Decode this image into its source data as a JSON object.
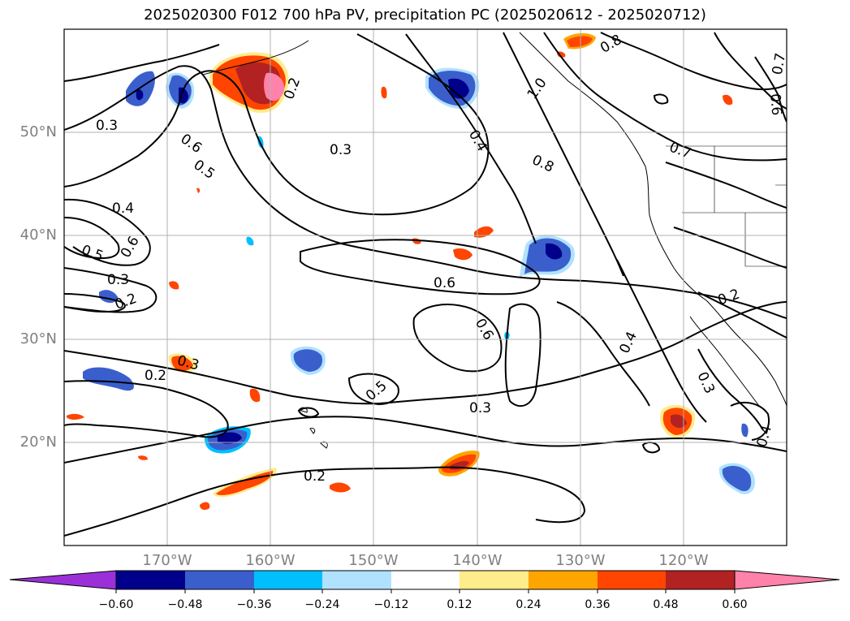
{
  "title": "2025020300 F012 700 hPa PV, precipitation PC (2025020612 - 2025020712)",
  "lat_labels": [
    "50°N",
    "40°N",
    "30°N",
    "20°N"
  ],
  "lon_labels": [
    "170°W",
    "160°W",
    "150°W",
    "140°W",
    "130°W",
    "120°W"
  ],
  "contour_labels": [
    "0.3",
    "0.6",
    "0.5",
    "0.2",
    "0.3",
    "0.4",
    "0.8",
    "1.0",
    "0.8",
    "0.7",
    "0.6",
    "0.7",
    "0.4",
    "0.6",
    "0.5",
    "0.3",
    "0.2",
    "0.6",
    "0.6",
    "0.5",
    "0.3",
    "0.3",
    "0.2",
    "0.2",
    "0.2",
    "0.4",
    "0.3",
    "0.4"
  ],
  "colorbar": {
    "tick_labels": [
      "−0.60",
      "−0.48",
      "−0.36",
      "−0.24",
      "−0.12",
      "0.12",
      "0.24",
      "0.36",
      "0.48",
      "0.60"
    ],
    "colors": [
      "#9b30d9",
      "#00008b",
      "#3a5fcd",
      "#00bfff",
      "#b0e2ff",
      "#ffffff",
      "#ffec8b",
      "#ffa500",
      "#ff4500",
      "#b22222",
      "#ff82ab"
    ]
  }
}
